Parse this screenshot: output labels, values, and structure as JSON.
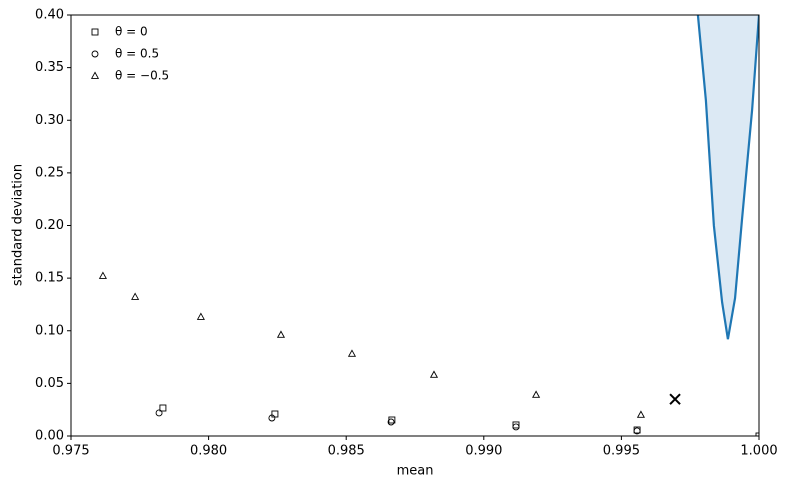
{
  "chart_data": {
    "type": "scatter",
    "xlabel": "mean",
    "ylabel": "standard deviation",
    "xlim": [
      0.975,
      1.0
    ],
    "ylim": [
      0,
      0.4
    ],
    "xticks": [
      0.975,
      {
        "value": 0.98,
        "label": "0.980"
      },
      0.985,
      {
        "value": 0.99,
        "label": "0.990"
      },
      0.995,
      {
        "value": 1.0,
        "label": "1.000"
      }
    ],
    "yticks": [
      {
        "value": 0,
        "label": "0.00"
      },
      0.05,
      {
        "value": 0.1,
        "label": "0.10"
      },
      0.15,
      {
        "value": 0.2,
        "label": "0.20"
      },
      0.25,
      {
        "value": 0.3,
        "label": "0.30"
      },
      0.35,
      {
        "value": 0.4,
        "label": "0.40"
      }
    ],
    "legend": "upper left",
    "series": [
      {
        "name": "θ = 0",
        "marker": "square",
        "color": "#000000",
        "x": [
          0.97834,
          0.98241,
          0.98666,
          0.99117,
          0.99557,
          1.0
        ],
        "values": [
          0.0266,
          0.0209,
          0.0152,
          0.0105,
          0.0057,
          0
        ]
      },
      {
        "name": "θ = 0.5",
        "marker": "circle",
        "color": "#000000",
        "x": [
          0.9782,
          0.9823,
          0.98663,
          0.99117,
          0.99557
        ],
        "values": [
          0.0219,
          0.0171,
          0.0133,
          0.0086,
          0.0048
        ]
      },
      {
        "name": "θ = −0.5",
        "marker": "triangle",
        "color": "#000000",
        "x": [
          0.97616,
          0.97733,
          0.97972,
          0.98263,
          0.98521,
          0.98819,
          0.9919,
          0.99571
        ],
        "values": [
          0.152,
          0.132,
          0.113,
          0.096,
          0.078,
          0.058,
          0.039,
          0.02
        ]
      }
    ],
    "point": {
      "marker": "x",
      "color": "#000000",
      "x": 0.99695,
      "y": 0.035
    },
    "curve": {
      "color": "#1f77b4",
      "fill": "#dce9f4",
      "x": [
        0.99778,
        0.99807,
        0.99836,
        0.99866,
        0.99887,
        0.99913,
        0.99938,
        0.99975,
        1.0
      ],
      "y": [
        0.4,
        0.319,
        0.2,
        0.127,
        0.092,
        0.131,
        0.205,
        0.31,
        0.4
      ]
    }
  }
}
